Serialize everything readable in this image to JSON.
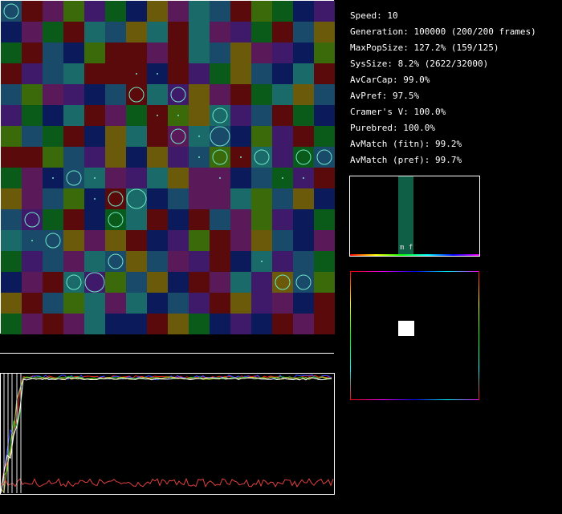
{
  "stats": [
    {
      "label": "Speed",
      "value": "10"
    },
    {
      "label": "Generation",
      "value": "100000 (200/200 frames)"
    },
    {
      "label": "MaxPopSize",
      "value": "127.2% (159/125)"
    },
    {
      "label": "SysSize",
      "value": "8.2% (2622/32000)"
    },
    {
      "label": "AvCarCap",
      "value": "99.0%"
    },
    {
      "label": "AvPref",
      "value": "97.5%"
    },
    {
      "label": "Cramer's V",
      "value": "100.0%"
    },
    {
      "label": "Purebred",
      "value": "100.0%"
    },
    {
      "label": "AvMatch (fitn)",
      "value": "99.2%"
    },
    {
      "label": "AvMatch (pref)",
      "value": "99.7%"
    }
  ],
  "histogram": {
    "marker_label": "m f",
    "bar_color": "#0f5e46"
  },
  "grid": {
    "rows": 16,
    "cols": 16,
    "palette": [
      "#1a4a6a",
      "#5a1a5a",
      "#0a5a1a",
      "#5a0a0a",
      "#6a5a0a",
      "#0a1a5a",
      "#1a6a6a",
      "#3a6a0a",
      "#401a6a"
    ],
    "cells": [
      [
        0,
        3,
        1,
        7,
        8,
        2,
        5,
        4,
        1,
        6,
        0,
        3,
        7,
        2,
        5,
        8
      ],
      [
        5,
        1,
        2,
        3,
        6,
        0,
        4,
        6,
        3,
        6,
        1,
        8,
        2,
        3,
        0,
        4
      ],
      [
        2,
        3,
        0,
        5,
        7,
        3,
        3,
        1,
        3,
        6,
        0,
        4,
        1,
        8,
        5,
        7
      ],
      [
        3,
        8,
        0,
        6,
        3,
        3,
        3,
        5,
        3,
        8,
        2,
        4,
        0,
        5,
        6,
        3
      ],
      [
        0,
        7,
        1,
        8,
        5,
        0,
        3,
        6,
        8,
        4,
        1,
        3,
        2,
        6,
        4,
        0
      ],
      [
        8,
        2,
        5,
        6,
        3,
        1,
        2,
        3,
        7,
        4,
        6,
        8,
        0,
        3,
        2,
        5
      ],
      [
        7,
        0,
        2,
        3,
        5,
        4,
        6,
        3,
        1,
        6,
        0,
        5,
        7,
        8,
        3,
        2
      ],
      [
        3,
        3,
        7,
        0,
        8,
        4,
        5,
        4,
        8,
        0,
        7,
        3,
        6,
        8,
        2,
        0
      ],
      [
        2,
        1,
        5,
        0,
        6,
        1,
        8,
        6,
        4,
        1,
        1,
        5,
        0,
        2,
        8,
        3
      ],
      [
        4,
        1,
        0,
        7,
        5,
        3,
        6,
        5,
        0,
        1,
        1,
        6,
        7,
        0,
        4,
        5
      ],
      [
        0,
        8,
        2,
        3,
        5,
        2,
        6,
        3,
        5,
        3,
        0,
        1,
        7,
        8,
        5,
        2
      ],
      [
        6,
        0,
        0,
        4,
        1,
        4,
        3,
        5,
        8,
        7,
        3,
        1,
        4,
        0,
        5,
        1
      ],
      [
        2,
        8,
        0,
        1,
        6,
        0,
        4,
        0,
        1,
        8,
        3,
        5,
        6,
        8,
        0,
        2
      ],
      [
        5,
        1,
        3,
        6,
        8,
        7,
        0,
        4,
        5,
        3,
        1,
        6,
        8,
        4,
        0,
        7
      ],
      [
        4,
        3,
        0,
        7,
        6,
        1,
        6,
        5,
        0,
        8,
        3,
        4,
        8,
        1,
        5,
        3
      ],
      [
        2,
        1,
        3,
        1,
        6,
        5,
        5,
        3,
        4,
        2,
        5,
        8,
        5,
        3,
        1,
        3
      ]
    ],
    "colonies": [
      {
        "r": 0,
        "c": 0,
        "size": "large"
      },
      {
        "r": 3,
        "c": 6,
        "size": "dot"
      },
      {
        "r": 3,
        "c": 7,
        "size": "dot"
      },
      {
        "r": 4,
        "c": 6,
        "size": "large"
      },
      {
        "r": 4,
        "c": 8,
        "size": "large"
      },
      {
        "r": 5,
        "c": 7,
        "size": "dot"
      },
      {
        "r": 5,
        "c": 8,
        "size": "dot"
      },
      {
        "r": 5,
        "c": 10,
        "size": "large"
      },
      {
        "r": 6,
        "c": 8,
        "size": "large"
      },
      {
        "r": 6,
        "c": 9,
        "size": "dot"
      },
      {
        "r": 6,
        "c": 10,
        "size": "xlarge"
      },
      {
        "r": 7,
        "c": 9,
        "size": "dot"
      },
      {
        "r": 7,
        "c": 10,
        "size": "large"
      },
      {
        "r": 7,
        "c": 11,
        "size": "dot"
      },
      {
        "r": 7,
        "c": 12,
        "size": "large"
      },
      {
        "r": 7,
        "c": 14,
        "size": "large"
      },
      {
        "r": 7,
        "c": 15,
        "size": "large"
      },
      {
        "r": 8,
        "c": 2,
        "size": "dot"
      },
      {
        "r": 8,
        "c": 3,
        "size": "large"
      },
      {
        "r": 8,
        "c": 4,
        "size": "dot"
      },
      {
        "r": 8,
        "c": 10,
        "size": "dot"
      },
      {
        "r": 8,
        "c": 13,
        "size": "dot"
      },
      {
        "r": 8,
        "c": 14,
        "size": "dot"
      },
      {
        "r": 9,
        "c": 4,
        "size": "dot"
      },
      {
        "r": 9,
        "c": 5,
        "size": "large"
      },
      {
        "r": 9,
        "c": 6,
        "size": "xlarge"
      },
      {
        "r": 10,
        "c": 1,
        "size": "large"
      },
      {
        "r": 10,
        "c": 5,
        "size": "large"
      },
      {
        "r": 11,
        "c": 1,
        "size": "dot"
      },
      {
        "r": 11,
        "c": 2,
        "size": "large"
      },
      {
        "r": 12,
        "c": 5,
        "size": "large"
      },
      {
        "r": 12,
        "c": 12,
        "size": "dot"
      },
      {
        "r": 13,
        "c": 3,
        "size": "large"
      },
      {
        "r": 13,
        "c": 4,
        "size": "xlarge"
      },
      {
        "r": 13,
        "c": 13,
        "size": "large"
      },
      {
        "r": 13,
        "c": 14,
        "size": "large"
      }
    ]
  }
}
